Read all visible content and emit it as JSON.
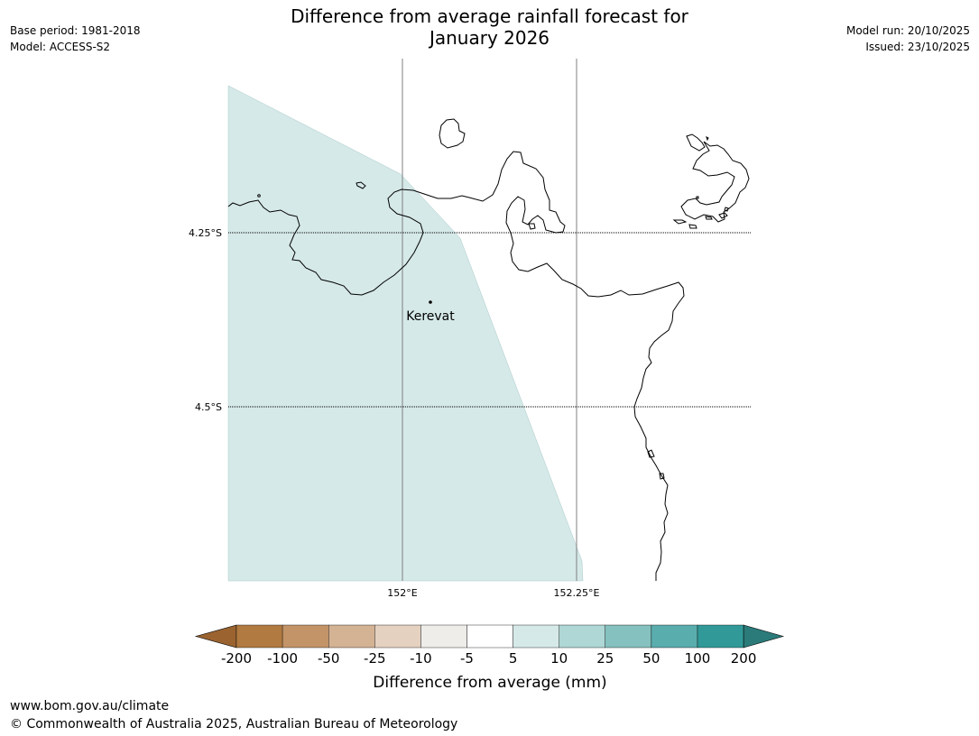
{
  "title_line1": "Difference from average rainfall forecast for",
  "title_line2": "January 2026",
  "meta_left": {
    "base_period": "Base period: 1981-2018",
    "model": "Model: ACCESS-S2"
  },
  "meta_right": {
    "model_run": "Model run: 20/10/2025",
    "issued": "Issued: 23/10/2025"
  },
  "map": {
    "latitude_labels": [
      "4.25°S",
      "4.5°S"
    ],
    "longitude_labels": [
      "152°E",
      "152.25°E"
    ],
    "place": {
      "name": "Kerevat"
    },
    "forecast_fill_color": "#d5e9e8",
    "coastline_color": "#000000"
  },
  "colorbar": {
    "title": "Difference from average (mm)",
    "ticks": [
      "-200",
      "-100",
      "-50",
      "-25",
      "-10",
      "-5",
      "5",
      "10",
      "25",
      "50",
      "100",
      "200"
    ],
    "colors": [
      "#9a6330",
      "#b07a41",
      "#c39468",
      "#d4b294",
      "#e5d1c0",
      "#efedea",
      "#ffffff",
      "#d5e9e8",
      "#aed7d6",
      "#85c1bf",
      "#5aadad",
      "#319a98",
      "#2b7b7a"
    ]
  },
  "footer": {
    "url": "www.bom.gov.au/climate",
    "copyright": "© Commonwealth of Australia 2025, Australian Bureau of Meteorology"
  }
}
